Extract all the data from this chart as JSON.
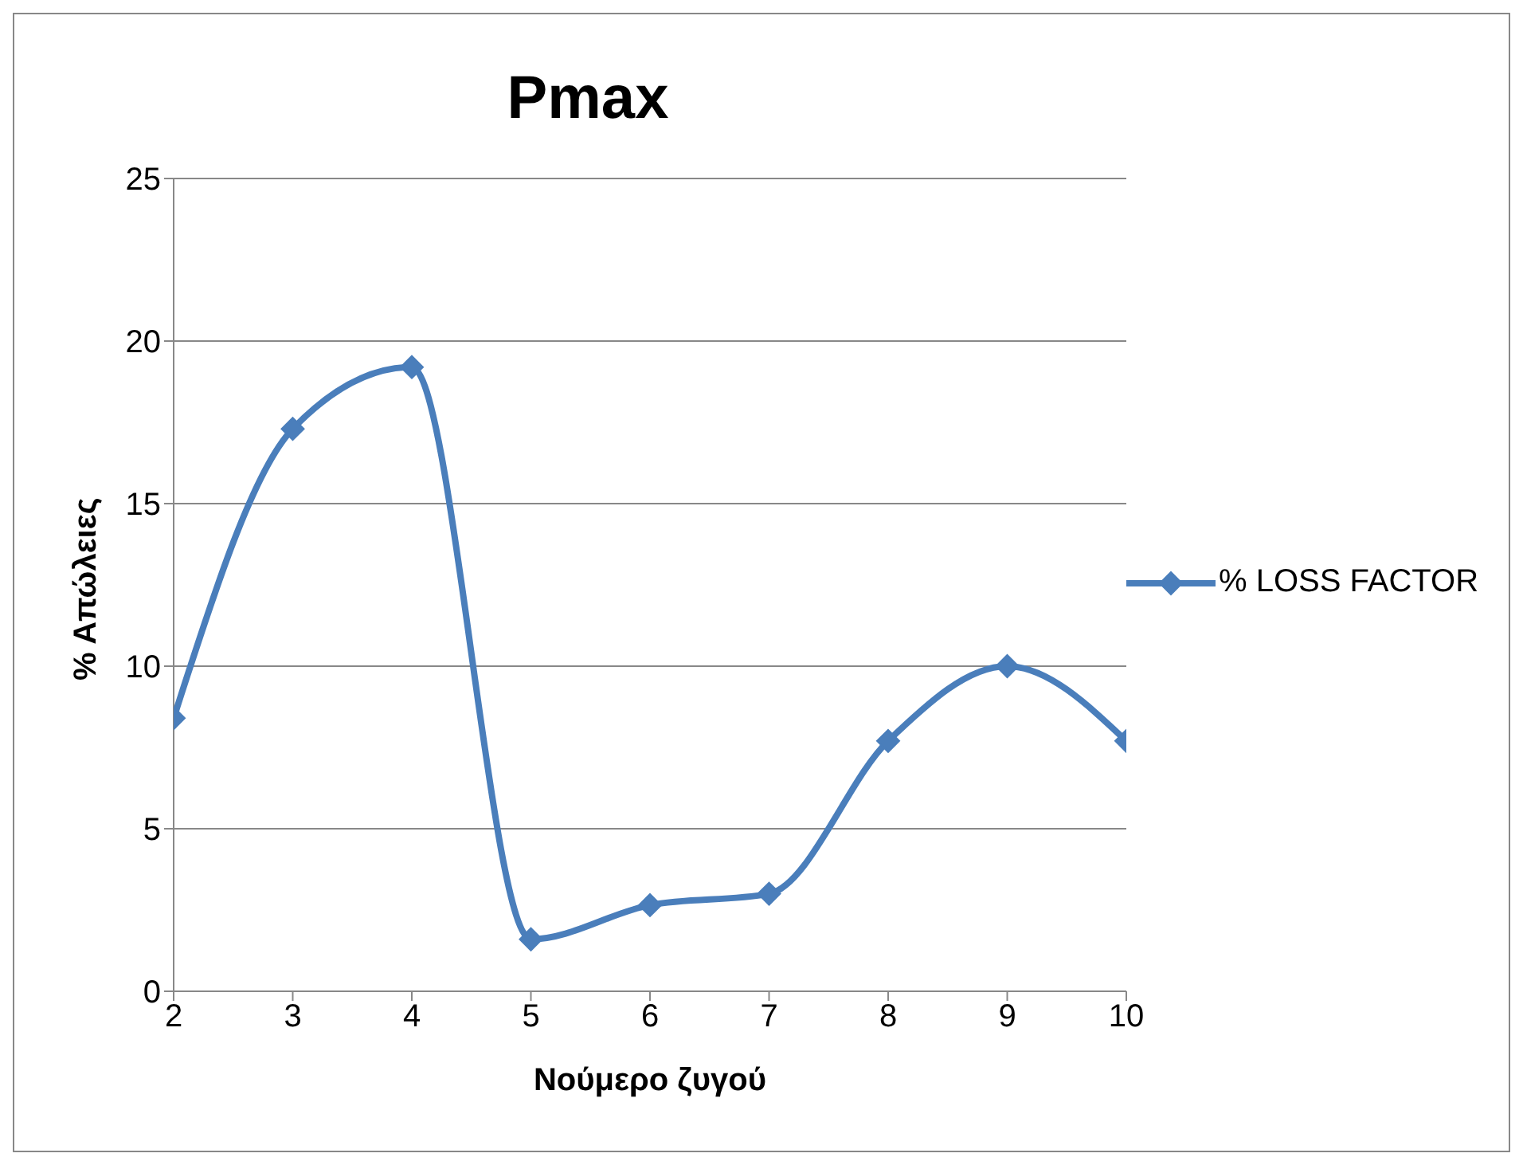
{
  "chart_data": {
    "type": "line",
    "title": "Pmax",
    "xlabel": "Νούμερο ζυγού",
    "ylabel": "% Απώλειες",
    "x": [
      2,
      3,
      4,
      5,
      6,
      7,
      8,
      9,
      10
    ],
    "series": [
      {
        "name": "% LOSS FACTOR",
        "color": "#4a7ebb",
        "values": [
          8.4,
          17.3,
          19.2,
          1.6,
          2.65,
          3.0,
          7.7,
          10.0,
          7.7
        ]
      }
    ],
    "xlim": [
      2,
      10
    ],
    "xticks": [
      2,
      3,
      4,
      5,
      6,
      7,
      8,
      9,
      10
    ],
    "ylim": [
      0,
      25
    ],
    "yticks": [
      0,
      5,
      10,
      15,
      20,
      25
    ],
    "grid": "y",
    "legend": "right",
    "marker": "diamond",
    "line_style": "solid"
  }
}
